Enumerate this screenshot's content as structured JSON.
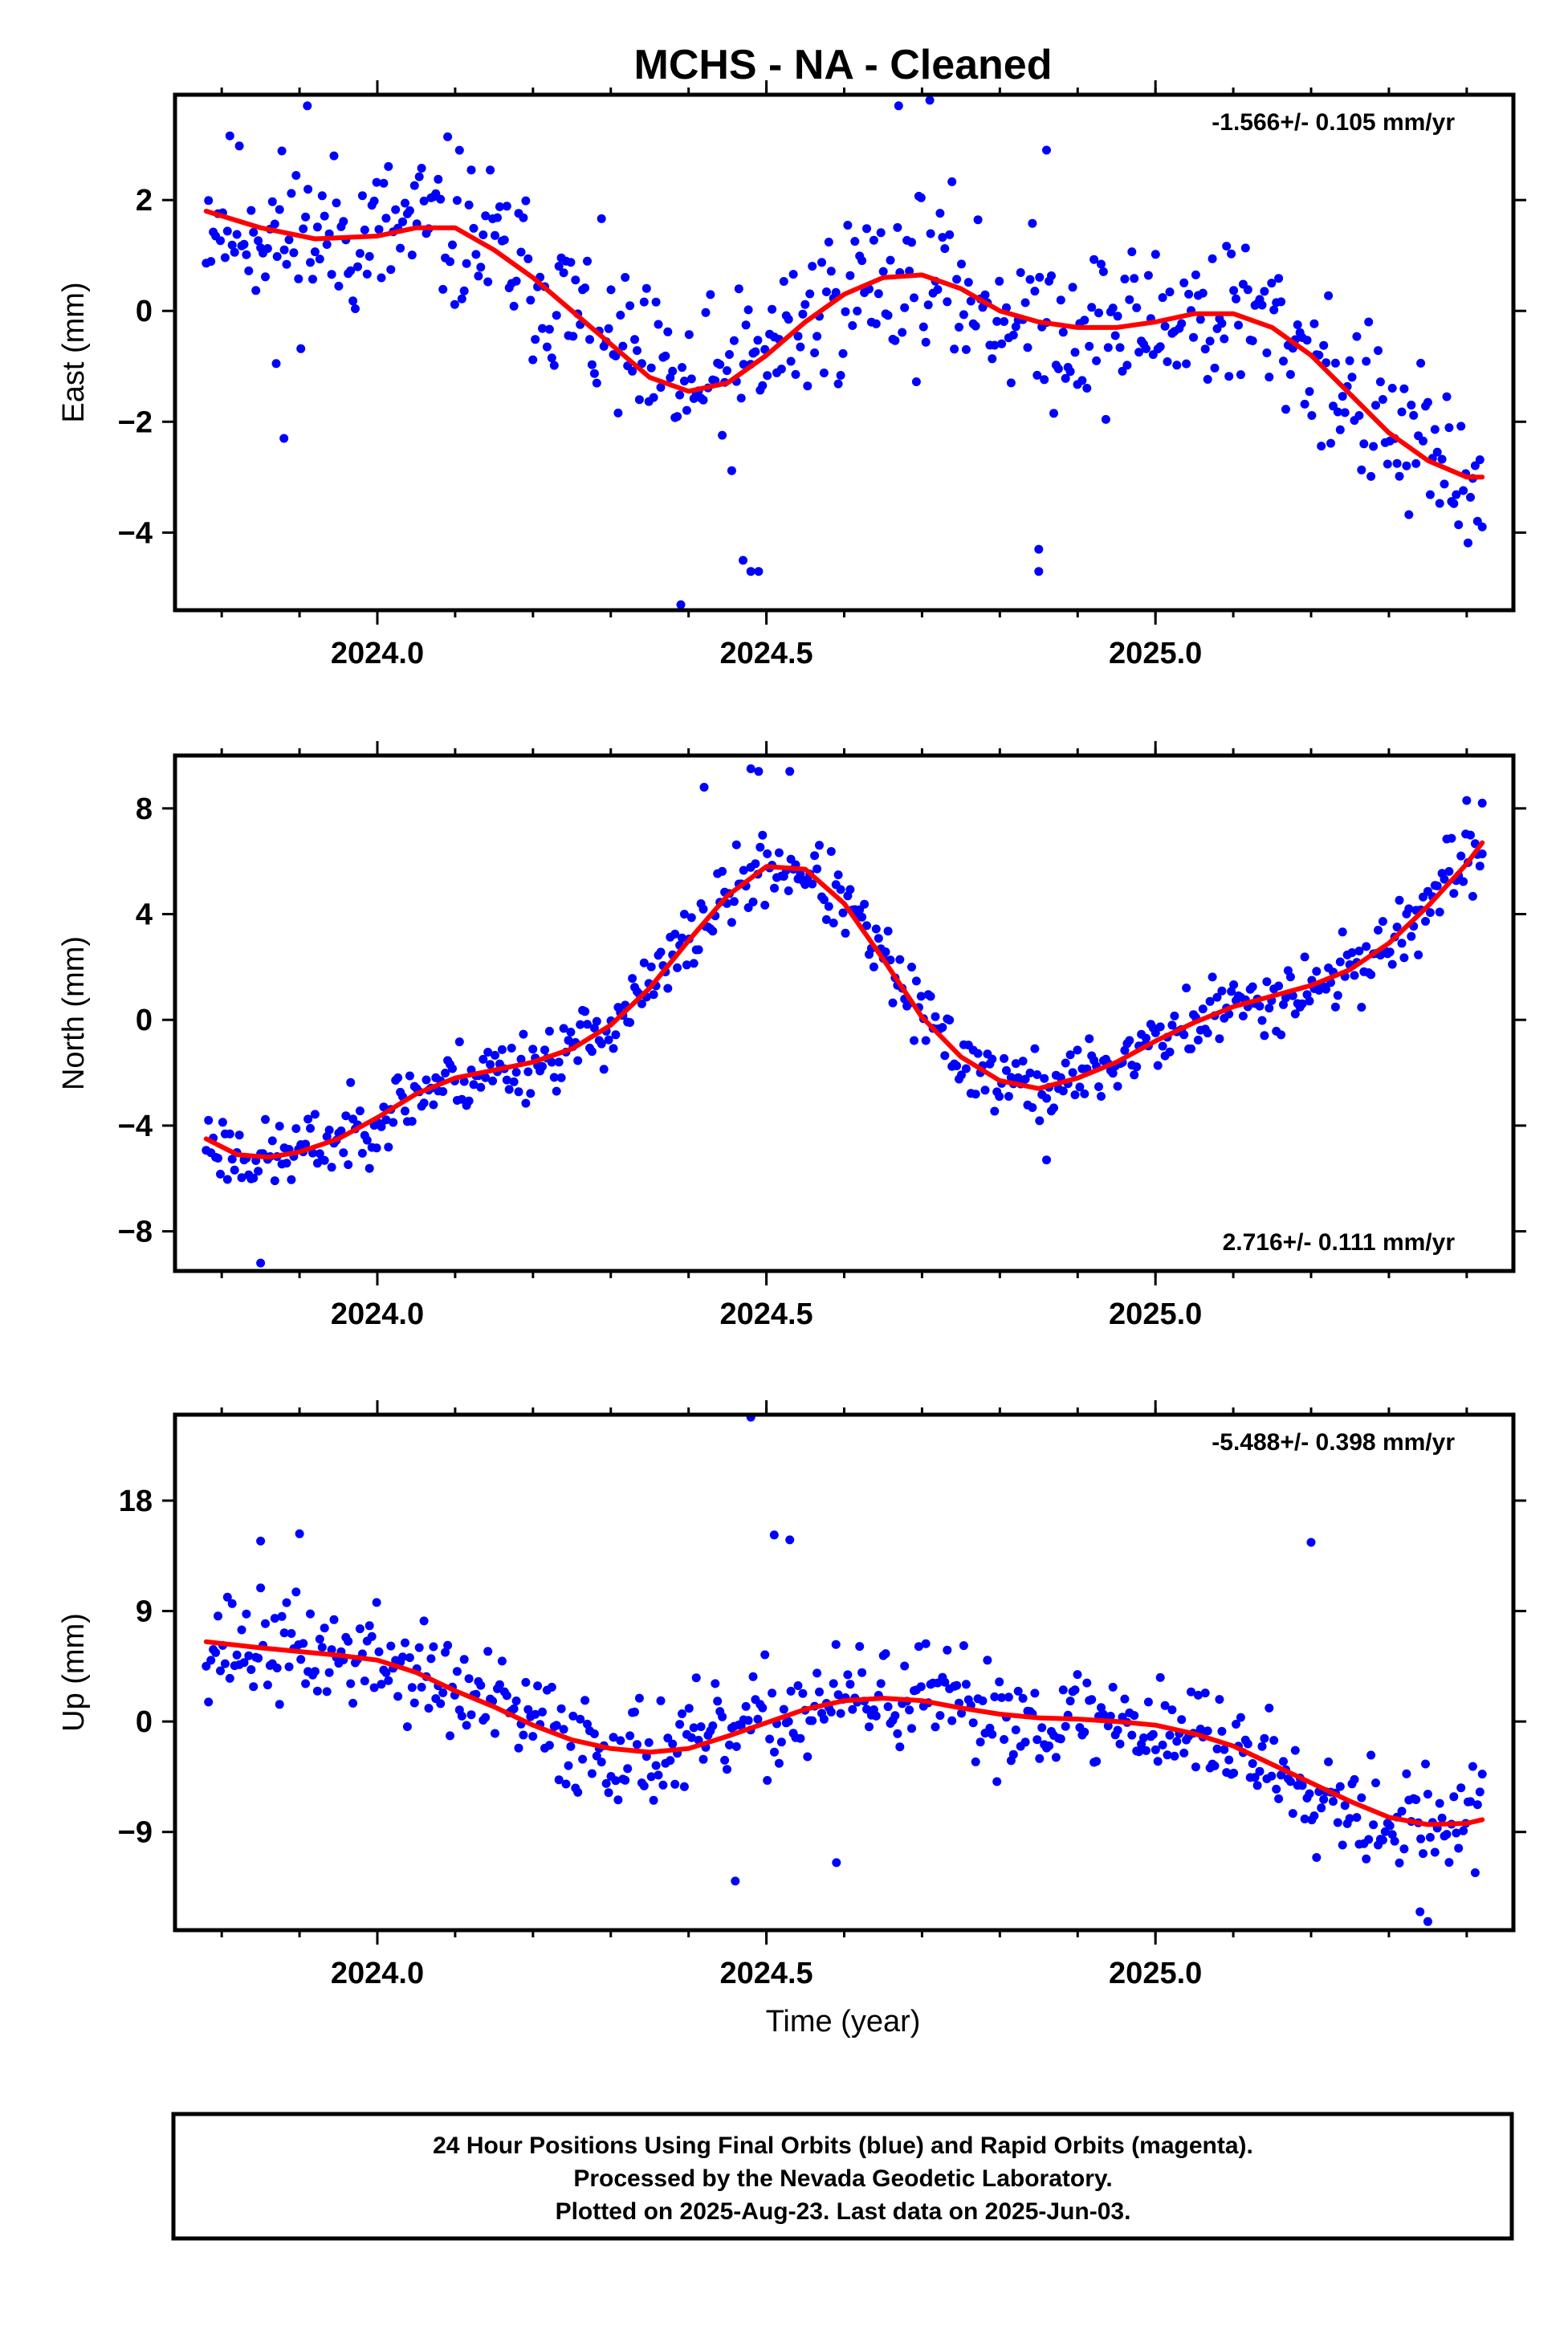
{
  "title": "MCHS  - NA - Cleaned",
  "xlabel": "Time (year)",
  "footer": {
    "line1": "24 Hour Positions Using Final Orbits (blue) and Rapid Orbits (magenta).",
    "line2": "Processed by the Nevada Geodetic Laboratory.",
    "line3": "Plotted on 2025-Aug-23. Last data on 2025-Jun-03."
  },
  "colors": {
    "points": "#0000ff",
    "fit": "#ff0000",
    "frame": "#000000"
  },
  "chart_data": [
    {
      "type": "scatter",
      "panel": "east",
      "ylabel": "East (mm)",
      "rate": "-1.566+/- 0.105 mm/yr",
      "rate_position": "top-right",
      "xlim": [
        2023.74,
        2025.46
      ],
      "ylim": [
        -5.4,
        3.9
      ],
      "xticks": [
        2024.0,
        2024.5,
        2025.0
      ],
      "xtick_labels": [
        "2024.0",
        "2024.5",
        "2025.0"
      ],
      "yticks": [
        -4,
        -2,
        0,
        2
      ],
      "ytick_labels": [
        "−4",
        "−2",
        "0",
        "2"
      ],
      "fit": [
        [
          2023.78,
          1.8
        ],
        [
          2023.85,
          1.5
        ],
        [
          2023.92,
          1.3
        ],
        [
          2024.0,
          1.35
        ],
        [
          2024.05,
          1.5
        ],
        [
          2024.1,
          1.5
        ],
        [
          2024.15,
          1.1
        ],
        [
          2024.2,
          0.6
        ],
        [
          2024.25,
          0.0
        ],
        [
          2024.3,
          -0.6
        ],
        [
          2024.35,
          -1.2
        ],
        [
          2024.4,
          -1.45
        ],
        [
          2024.45,
          -1.3
        ],
        [
          2024.5,
          -0.8
        ],
        [
          2024.55,
          -0.2
        ],
        [
          2024.6,
          0.3
        ],
        [
          2024.65,
          0.6
        ],
        [
          2024.7,
          0.65
        ],
        [
          2024.75,
          0.4
        ],
        [
          2024.8,
          0.0
        ],
        [
          2024.85,
          -0.2
        ],
        [
          2024.9,
          -0.3
        ],
        [
          2024.95,
          -0.3
        ],
        [
          2025.0,
          -0.2
        ],
        [
          2025.05,
          -0.05
        ],
        [
          2025.1,
          -0.05
        ],
        [
          2025.15,
          -0.3
        ],
        [
          2025.2,
          -0.8
        ],
        [
          2025.25,
          -1.5
        ],
        [
          2025.3,
          -2.2
        ],
        [
          2025.35,
          -2.7
        ],
        [
          2025.4,
          -3.0
        ],
        [
          2025.42,
          -3.0
        ]
      ],
      "fit_label": "",
      "noise": 1.1,
      "outliers": [
        [
          2023.88,
          -2.3
        ],
        [
          2023.87,
          -0.95
        ],
        [
          2024.39,
          -5.3
        ],
        [
          2024.47,
          -4.5
        ],
        [
          2024.48,
          -4.7
        ],
        [
          2024.49,
          -4.7
        ],
        [
          2024.85,
          -4.7
        ],
        [
          2024.85,
          -4.3
        ],
        [
          2024.67,
          3.7
        ],
        [
          2024.71,
          3.8
        ],
        [
          2024.86,
          2.9
        ],
        [
          2023.91,
          3.7
        ]
      ],
      "seed": 11
    },
    {
      "type": "scatter",
      "panel": "north",
      "ylabel": "North (mm)",
      "rate": "2.716+/- 0.111 mm/yr",
      "rate_position": "bottom-right",
      "xlim": [
        2023.74,
        2025.46
      ],
      "ylim": [
        -9.5,
        10.0
      ],
      "xticks": [
        2024.0,
        2024.5,
        2025.0
      ],
      "xtick_labels": [
        "2024.0",
        "2024.5",
        "2025.0"
      ],
      "yticks": [
        -8,
        -4,
        0,
        4,
        8
      ],
      "ytick_labels": [
        "−8",
        "−4",
        "0",
        "4",
        "8"
      ],
      "fit": [
        [
          2023.78,
          -4.5
        ],
        [
          2023.82,
          -5.1
        ],
        [
          2023.86,
          -5.2
        ],
        [
          2023.9,
          -5.0
        ],
        [
          2023.95,
          -4.5
        ],
        [
          2024.0,
          -3.7
        ],
        [
          2024.05,
          -2.8
        ],
        [
          2024.1,
          -2.2
        ],
        [
          2024.15,
          -1.9
        ],
        [
          2024.2,
          -1.6
        ],
        [
          2024.25,
          -1.1
        ],
        [
          2024.3,
          -0.2
        ],
        [
          2024.35,
          1.2
        ],
        [
          2024.4,
          3.0
        ],
        [
          2024.45,
          4.7
        ],
        [
          2024.5,
          5.8
        ],
        [
          2024.55,
          5.7
        ],
        [
          2024.6,
          4.4
        ],
        [
          2024.65,
          2.3
        ],
        [
          2024.7,
          0.1
        ],
        [
          2024.75,
          -1.4
        ],
        [
          2024.8,
          -2.3
        ],
        [
          2024.85,
          -2.6
        ],
        [
          2024.9,
          -2.2
        ],
        [
          2024.95,
          -1.6
        ],
        [
          2025.0,
          -0.8
        ],
        [
          2025.05,
          -0.1
        ],
        [
          2025.1,
          0.5
        ],
        [
          2025.15,
          0.9
        ],
        [
          2025.2,
          1.3
        ],
        [
          2025.25,
          1.9
        ],
        [
          2025.3,
          2.9
        ],
        [
          2025.35,
          4.3
        ],
        [
          2025.4,
          5.9
        ],
        [
          2025.42,
          6.7
        ]
      ],
      "fit_label": "",
      "noise": 1.0,
      "outliers": [
        [
          2024.48,
          9.5
        ],
        [
          2024.49,
          9.4
        ],
        [
          2024.53,
          9.4
        ],
        [
          2024.42,
          8.8
        ],
        [
          2023.85,
          -9.2
        ],
        [
          2024.86,
          -5.3
        ],
        [
          2025.42,
          8.2
        ],
        [
          2025.4,
          8.3
        ]
      ],
      "seed": 23
    },
    {
      "type": "scatter",
      "panel": "up",
      "ylabel": "Up (mm)",
      "rate": "-5.488+/- 0.398 mm/yr",
      "rate_position": "top-right",
      "xlim": [
        2023.74,
        2025.46
      ],
      "ylim": [
        -17.0,
        25.0
      ],
      "xticks": [
        2024.0,
        2024.5,
        2025.0
      ],
      "xtick_labels": [
        "2024.0",
        "2024.5",
        "2025.0"
      ],
      "yticks": [
        -9,
        0,
        9,
        18
      ],
      "ytick_labels": [
        "−9",
        "0",
        "9",
        "18"
      ],
      "fit": [
        [
          2023.78,
          6.5
        ],
        [
          2023.85,
          6.0
        ],
        [
          2023.95,
          5.4
        ],
        [
          2024.0,
          5.0
        ],
        [
          2024.05,
          4.0
        ],
        [
          2024.1,
          2.5
        ],
        [
          2024.15,
          1.2
        ],
        [
          2024.2,
          -0.3
        ],
        [
          2024.25,
          -1.5
        ],
        [
          2024.3,
          -2.2
        ],
        [
          2024.35,
          -2.5
        ],
        [
          2024.4,
          -2.2
        ],
        [
          2024.45,
          -1.2
        ],
        [
          2024.5,
          -0.1
        ],
        [
          2024.55,
          1.0
        ],
        [
          2024.6,
          1.7
        ],
        [
          2024.65,
          1.9
        ],
        [
          2024.7,
          1.7
        ],
        [
          2024.75,
          1.1
        ],
        [
          2024.8,
          0.6
        ],
        [
          2024.85,
          0.3
        ],
        [
          2024.9,
          0.2
        ],
        [
          2024.95,
          0.0
        ],
        [
          2025.0,
          -0.3
        ],
        [
          2025.05,
          -1.0
        ],
        [
          2025.1,
          -2.0
        ],
        [
          2025.15,
          -3.5
        ],
        [
          2025.2,
          -5.0
        ],
        [
          2025.25,
          -6.5
        ],
        [
          2025.3,
          -7.8
        ],
        [
          2025.35,
          -8.4
        ],
        [
          2025.4,
          -8.3
        ],
        [
          2025.42,
          -8.0
        ]
      ],
      "fit_label": "",
      "noise": 3.2,
      "outliers": [
        [
          2024.48,
          24.8
        ],
        [
          2024.51,
          15.2
        ],
        [
          2024.53,
          14.8
        ],
        [
          2025.2,
          14.6
        ],
        [
          2023.9,
          15.3
        ],
        [
          2023.85,
          14.7
        ],
        [
          2024.46,
          -13.0
        ],
        [
          2024.59,
          -11.5
        ],
        [
          2025.35,
          -16.3
        ],
        [
          2025.34,
          -15.5
        ]
      ],
      "seed": 37
    }
  ]
}
